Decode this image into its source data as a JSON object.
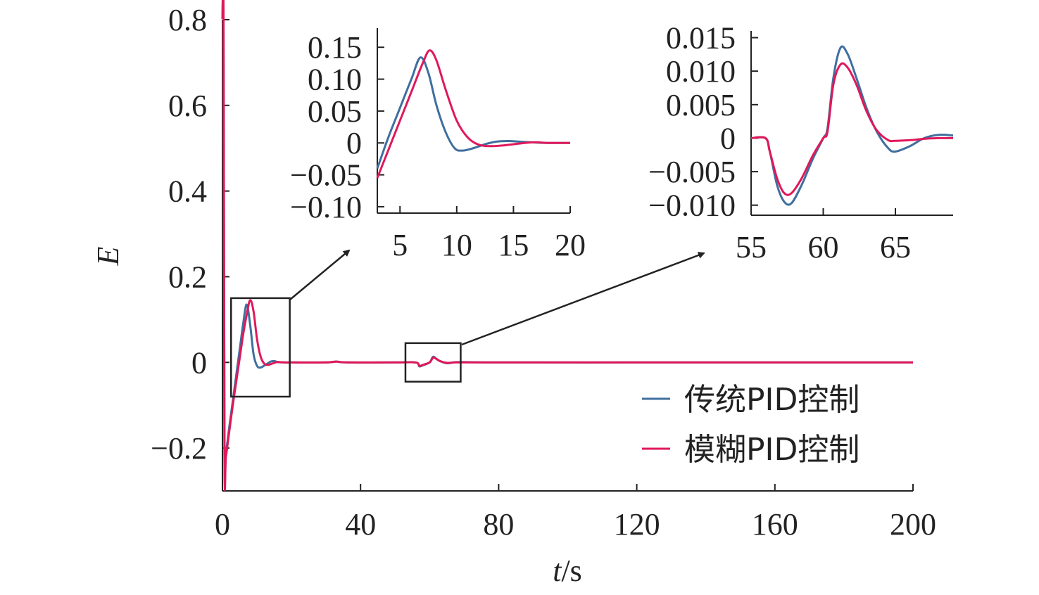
{
  "colors": {
    "traditional": "#3f6f9e",
    "fuzzy": "#e0185a",
    "axis": "#222222"
  },
  "chart_data": [
    {
      "id": "main",
      "type": "line",
      "xlabel_var": "t",
      "xlabel_unit": "/s",
      "ylabel": "E",
      "xlim": [
        0,
        200
      ],
      "ylim": [
        -0.3,
        0.8
      ],
      "xticks": [
        0,
        40,
        80,
        120,
        160,
        200
      ],
      "xtick_labels": [
        "0",
        "40",
        "80",
        "120",
        "160",
        "200"
      ],
      "yticks": [
        -0.2,
        0,
        0.2,
        0.4,
        0.6,
        0.8
      ],
      "ytick_labels": [
        "−0.2",
        "0",
        "0.2",
        "0.4",
        "0.6",
        "0.8"
      ],
      "legend": {
        "placement": "bottom-right",
        "entries": [
          "传统PID控制",
          "模糊PID控制"
        ]
      },
      "series": [
        {
          "name": "传统PID控制",
          "color_key": "traditional",
          "x": [
            0,
            0.3,
            0.6,
            1,
            2,
            3,
            4,
            5,
            6,
            7,
            8,
            9,
            10,
            11,
            12,
            13,
            14,
            15,
            16,
            18,
            20,
            30,
            33,
            36,
            50,
            56,
            57,
            58,
            60,
            61,
            62,
            63,
            65,
            67,
            69,
            80,
            120,
            160,
            200
          ],
          "y": [
            0.8,
            0.8,
            -0.2,
            -0.21,
            -0.15,
            -0.09,
            -0.03,
            0.03,
            0.09,
            0.135,
            0.09,
            0.02,
            -0.008,
            -0.012,
            -0.008,
            -0.003,
            0.002,
            0.003,
            0.001,
            0,
            0,
            0,
            0.002,
            0,
            0,
            0,
            -0.009,
            -0.007,
            0,
            0.013,
            0.008,
            0.003,
            -0.002,
            0,
            0.001,
            0,
            0,
            0,
            0
          ]
        },
        {
          "name": "模糊PID控制",
          "color_key": "fuzzy",
          "x": [
            0,
            0.3,
            0.6,
            1,
            2,
            3,
            4,
            5,
            6,
            7,
            8,
            9,
            10,
            11,
            12,
            13,
            14,
            15,
            16,
            18,
            20,
            30,
            33,
            36,
            50,
            56,
            57,
            58,
            60,
            61,
            62,
            63,
            65,
            67,
            69,
            80,
            120,
            160,
            200
          ],
          "y": [
            0.8,
            0.8,
            -0.22,
            -0.22,
            -0.16,
            -0.1,
            -0.045,
            0.01,
            0.065,
            0.11,
            0.145,
            0.12,
            0.055,
            0.015,
            -0.002,
            -0.006,
            -0.004,
            -0.001,
            0.001,
            0,
            0,
            0,
            0.002,
            0,
            0,
            0,
            -0.008,
            -0.006,
            0,
            0.011,
            0.008,
            0.003,
            -0.001,
            0,
            0,
            0,
            0,
            0,
            0
          ]
        }
      ],
      "zoom_boxes": [
        {
          "x_range": [
            2.5,
            19.5
          ],
          "y_range": [
            -0.08,
            0.15
          ],
          "target": "inset1"
        },
        {
          "x_range": [
            53,
            69
          ],
          "y_range": [
            -0.045,
            0.045
          ],
          "target": "inset2"
        }
      ]
    },
    {
      "id": "inset1",
      "type": "line",
      "xlim": [
        3,
        20
      ],
      "ylim": [
        -0.11,
        0.18
      ],
      "xticks": [
        5,
        10,
        15,
        20
      ],
      "xtick_labels": [
        "5",
        "10",
        "15",
        "20"
      ],
      "yticks": [
        -0.1,
        -0.05,
        0,
        0.05,
        0.1,
        0.15
      ],
      "ytick_labels": [
        "−0.10",
        "−0.05",
        "0",
        "0.05",
        "0.10",
        "0.15"
      ],
      "series": [
        {
          "name": "传统PID控制",
          "color_key": "traditional",
          "x": [
            3,
            4,
            5,
            6,
            6.8,
            7.5,
            8.2,
            9,
            9.8,
            10.5,
            11.5,
            12.5,
            13.5,
            14.5,
            15.5,
            16.5,
            18,
            20
          ],
          "y": [
            -0.04,
            0.01,
            0.055,
            0.1,
            0.134,
            0.11,
            0.06,
            0.018,
            -0.008,
            -0.012,
            -0.008,
            -0.002,
            0.002,
            0.003,
            0.002,
            0.001,
            0,
            0
          ]
        },
        {
          "name": "模糊PID控制",
          "color_key": "fuzzy",
          "x": [
            3,
            4,
            5,
            6,
            7,
            7.6,
            8.2,
            9,
            10,
            11,
            12,
            13,
            14,
            15,
            16,
            17,
            18,
            20
          ],
          "y": [
            -0.055,
            -0.01,
            0.035,
            0.08,
            0.125,
            0.145,
            0.13,
            0.085,
            0.035,
            0.008,
            -0.003,
            -0.005,
            -0.004,
            -0.002,
            0,
            0.001,
            0,
            0
          ]
        }
      ]
    },
    {
      "id": "inset2",
      "type": "line",
      "xlim": [
        55,
        69
      ],
      "ylim": [
        -0.0115,
        0.016
      ],
      "xticks": [
        55,
        60,
        65
      ],
      "xtick_labels": [
        "55",
        "60",
        "65"
      ],
      "yticks": [
        -0.01,
        -0.005,
        0,
        0.005,
        0.01,
        0.015
      ],
      "ytick_labels": [
        "−0.010",
        "−0.005",
        "0",
        "0.005",
        "0.010",
        "0.015"
      ],
      "series": [
        {
          "name": "传统PID控制",
          "color_key": "traditional",
          "x": [
            55,
            56,
            56.3,
            56.8,
            57.3,
            57.8,
            58.5,
            59.3,
            60,
            60.3,
            60.7,
            61.2,
            61.7,
            62.3,
            63,
            63.7,
            64.5,
            65,
            66,
            67,
            68,
            69
          ],
          "y": [
            0,
            0,
            -0.002,
            -0.007,
            -0.0095,
            -0.0097,
            -0.007,
            -0.003,
            0,
            0.0015,
            0.009,
            0.0135,
            0.0125,
            0.009,
            0.0045,
            0.001,
            -0.0015,
            -0.002,
            -0.0012,
            0,
            0.0005,
            0.0004
          ]
        },
        {
          "name": "模糊PID控制",
          "color_key": "fuzzy",
          "x": [
            55,
            56,
            56.3,
            56.8,
            57.3,
            57.8,
            58.5,
            59.3,
            60,
            60.3,
            60.7,
            61.2,
            61.7,
            62.3,
            63,
            63.7,
            64.5,
            65,
            66,
            67,
            68,
            69
          ],
          "y": [
            0,
            0,
            -0.002,
            -0.006,
            -0.0082,
            -0.0082,
            -0.006,
            -0.0025,
            0,
            0.001,
            0.008,
            0.011,
            0.0105,
            0.008,
            0.004,
            0.0012,
            -0.0003,
            -0.0004,
            -0.0003,
            -0.0001,
            0,
            0
          ]
        }
      ]
    }
  ]
}
